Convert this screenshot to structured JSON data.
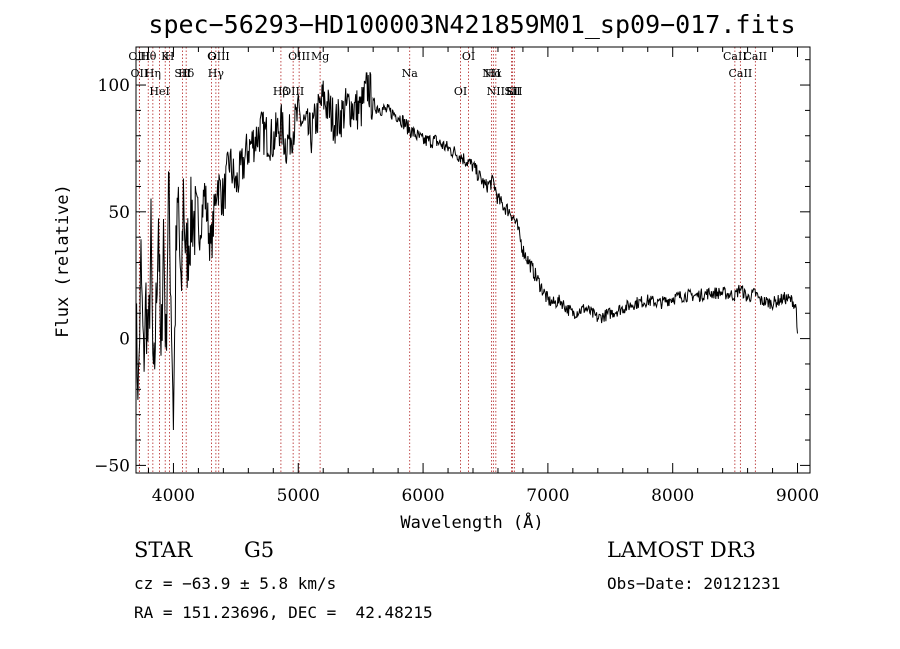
{
  "chart_data": {
    "type": "line",
    "title": "spec−56293−HD100003N421859M01_sp09−017.fits",
    "xlabel": "Wavelength (Å)",
    "ylabel": "Flux (relative)",
    "xlim": [
      3700,
      9100
    ],
    "ylim": [
      -53,
      115
    ],
    "xticks": [
      4000,
      5000,
      6000,
      7000,
      8000,
      9000
    ],
    "yticks": [
      -50,
      0,
      50,
      100
    ],
    "grid": false,
    "line_color": "#000000",
    "marker_color": "#b22222",
    "series": [
      {
        "x": [
          3700,
          3720,
          3740,
          3760,
          3780,
          3800,
          3820,
          3840,
          3860,
          3880,
          3900,
          3920,
          3940,
          3960,
          3980,
          4000,
          4020,
          4040,
          4060,
          4080,
          4100,
          4150,
          4200,
          4250,
          4300,
          4350,
          4400,
          4450,
          4500,
          4600,
          4700,
          4800,
          4860,
          4900,
          5000,
          5100,
          5200,
          5300,
          5400,
          5500,
          5560,
          5600,
          5700,
          5800,
          5900,
          6000,
          6100,
          6200,
          6300,
          6400,
          6500,
          6563,
          6600,
          6650,
          6700,
          6750,
          6800,
          6850,
          6900,
          6950,
          7000,
          7050,
          7100,
          7150,
          7200,
          7300,
          7400,
          7500,
          7600,
          7700,
          7800,
          7900,
          8000,
          8100,
          8200,
          8300,
          8400,
          8500,
          8540,
          8600,
          8660,
          8700,
          8800,
          8900,
          8960,
          8990,
          9000
        ],
        "y": [
          5,
          -20,
          30,
          -10,
          15,
          -5,
          40,
          -25,
          10,
          50,
          -15,
          45,
          -5,
          60,
          20,
          -30,
          30,
          55,
          10,
          60,
          30,
          50,
          40,
          58,
          35,
          62,
          55,
          70,
          60,
          75,
          82,
          78,
          85,
          76,
          88,
          80,
          95,
          85,
          92,
          90,
          100,
          92,
          90,
          88,
          82,
          78,
          78,
          75,
          72,
          68,
          60,
          62,
          55,
          52,
          50,
          45,
          35,
          30,
          25,
          20,
          15,
          14,
          15,
          12,
          10,
          12,
          8,
          10,
          12,
          14,
          15,
          14,
          16,
          17,
          17,
          18,
          18,
          17,
          20,
          16,
          18,
          15,
          14,
          16,
          15,
          12,
          2
        ]
      }
    ],
    "lines": [
      {
        "label": "Hθ",
        "wl": 3798
      },
      {
        "label": "OII",
        "wl": 3727
      },
      {
        "label": "OIII",
        "wl": 3727
      },
      {
        "label": "K",
        "wl": 3934
      },
      {
        "label": "Hδ",
        "wl": 4102
      },
      {
        "label": "HeI",
        "wl": 3889
      },
      {
        "label": "SII",
        "wl": 4072
      },
      {
        "label": "Hη",
        "wl": 3835
      },
      {
        "label": "H",
        "wl": 3969
      },
      {
        "label": "OIII",
        "wl": 4363
      },
      {
        "label": "Hγ",
        "wl": 4340
      },
      {
        "label": "G",
        "wl": 4305
      },
      {
        "label": "OIII",
        "wl": 5007
      },
      {
        "label": "OIII",
        "wl": 4959
      },
      {
        "label": "Hβ",
        "wl": 4861
      },
      {
        "label": "Mg",
        "wl": 5175
      },
      {
        "label": "Na",
        "wl": 5893
      },
      {
        "label": "OI",
        "wl": 6300
      },
      {
        "label": "OI",
        "wl": 6364
      },
      {
        "label": "Hα",
        "wl": 6563
      },
      {
        "label": "SII",
        "wl": 6716
      },
      {
        "label": "NII",
        "wl": 6548
      },
      {
        "label": "Li",
        "wl": 6708
      },
      {
        "label": "NII",
        "wl": 6583
      },
      {
        "label": "SII",
        "wl": 6731
      },
      {
        "label": "CaII",
        "wl": 8542
      },
      {
        "label": "CaII",
        "wl": 8498
      },
      {
        "label": "CaII",
        "wl": 8662
      }
    ]
  },
  "info": {
    "class": "STAR",
    "subclass": "G5",
    "survey": "LAMOST DR3",
    "cz": "cz = −63.9 ± 5.8 km/s",
    "obs_date": "Obs−Date: 20121231",
    "radec": "RA = 151.23696, DEC =  42.48215"
  }
}
